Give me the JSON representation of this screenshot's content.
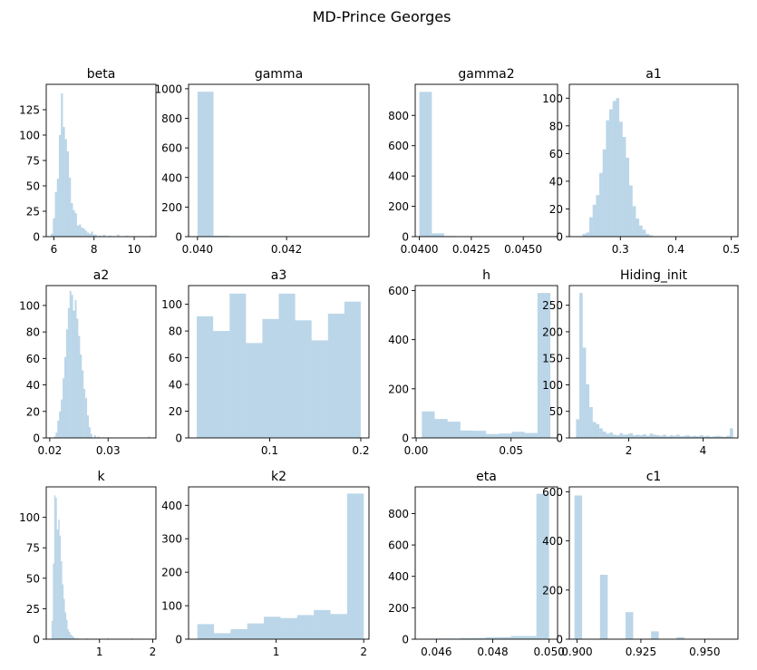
{
  "suptitle": "MD-Prince Georges",
  "bar_color": "#1f77b4",
  "bar_alpha": 0.3,
  "chart_data": [
    {
      "type": "bar",
      "title": "beta",
      "xlim": [
        5.62,
        11.08
      ],
      "ylim": [
        0,
        150
      ],
      "xticks": [
        6,
        8,
        10
      ],
      "xticklabels": [
        "6",
        "8",
        "10"
      ],
      "yticks": [
        0,
        25,
        50,
        75,
        100,
        125
      ],
      "yticklabels": [
        "0",
        "25",
        "50",
        "75",
        "100",
        "125"
      ],
      "bins": [
        [
          5.85,
          5.95,
          3
        ],
        [
          5.95,
          6.05,
          18
        ],
        [
          6.05,
          6.15,
          44
        ],
        [
          6.15,
          6.25,
          57
        ],
        [
          6.25,
          6.35,
          100
        ],
        [
          6.35,
          6.45,
          141
        ],
        [
          6.45,
          6.55,
          108
        ],
        [
          6.55,
          6.65,
          96
        ],
        [
          6.65,
          6.75,
          84
        ],
        [
          6.75,
          6.85,
          58
        ],
        [
          6.85,
          6.95,
          33
        ],
        [
          6.95,
          7.05,
          26
        ],
        [
          7.05,
          7.15,
          23
        ],
        [
          7.15,
          7.25,
          11
        ],
        [
          7.25,
          7.35,
          12
        ],
        [
          7.35,
          7.45,
          9
        ],
        [
          7.45,
          7.55,
          8
        ],
        [
          7.55,
          7.65,
          6
        ],
        [
          7.65,
          7.75,
          4
        ],
        [
          7.75,
          7.85,
          3
        ],
        [
          7.85,
          7.95,
          5
        ],
        [
          7.95,
          8.05,
          2
        ],
        [
          8.05,
          8.15,
          2
        ],
        [
          8.25,
          8.35,
          1
        ],
        [
          8.45,
          8.55,
          2
        ],
        [
          8.75,
          8.85,
          1
        ],
        [
          9.15,
          9.25,
          2
        ],
        [
          9.6,
          9.7,
          1
        ],
        [
          10.8,
          10.9,
          1
        ]
      ]
    },
    {
      "type": "bar",
      "title": "gamma",
      "xlim": [
        0.0398,
        0.04385
      ],
      "ylim": [
        0,
        1030
      ],
      "xticks": [
        0.04,
        0.042
      ],
      "xticklabels": [
        "0.040",
        "0.042"
      ],
      "yticks": [
        0,
        200,
        400,
        600,
        800,
        1000
      ],
      "yticklabels": [
        "0",
        "200",
        "400",
        "600",
        "800",
        "1000"
      ],
      "bins": [
        [
          0.04,
          0.04036,
          980
        ],
        [
          0.04036,
          0.04072,
          6
        ],
        [
          0.04072,
          0.04108,
          2
        ],
        [
          0.04108,
          0.04144,
          1
        ]
      ]
    },
    {
      "type": "bar",
      "title": "gamma2",
      "xlim": [
        0.0398,
        0.04665
      ],
      "ylim": [
        0,
        1005
      ],
      "xticks": [
        0.04,
        0.0425,
        0.045
      ],
      "xticklabels": [
        "0.0400",
        "0.0425",
        "0.0450"
      ],
      "yticks": [
        0,
        200,
        400,
        600,
        800
      ],
      "yticklabels": [
        "0",
        "200",
        "400",
        "600",
        "800"
      ],
      "bins": [
        [
          0.04,
          0.0406,
          955
        ],
        [
          0.0406,
          0.0412,
          22
        ],
        [
          0.0412,
          0.0418,
          4
        ],
        [
          0.0424,
          0.043,
          3
        ],
        [
          0.0436,
          0.0442,
          1
        ],
        [
          0.0442,
          0.0448,
          1
        ]
      ]
    },
    {
      "type": "bar",
      "title": "a1",
      "xlim": [
        0.208,
        0.512
      ],
      "ylim": [
        0,
        110
      ],
      "xticks": [
        0.3,
        0.4,
        0.5
      ],
      "xticklabels": [
        "0.3",
        "0.4",
        "0.5"
      ],
      "yticks": [
        0,
        20,
        40,
        60,
        80,
        100
      ],
      "yticklabels": [
        "0",
        "20",
        "40",
        "60",
        "80",
        "100"
      ],
      "bins": [
        [
          0.232,
          0.238,
          2
        ],
        [
          0.238,
          0.244,
          3
        ],
        [
          0.244,
          0.25,
          14
        ],
        [
          0.25,
          0.256,
          23
        ],
        [
          0.256,
          0.262,
          30
        ],
        [
          0.262,
          0.268,
          46
        ],
        [
          0.268,
          0.274,
          63
        ],
        [
          0.274,
          0.28,
          84
        ],
        [
          0.28,
          0.286,
          92
        ],
        [
          0.286,
          0.292,
          98
        ],
        [
          0.292,
          0.298,
          100
        ],
        [
          0.298,
          0.304,
          83
        ],
        [
          0.304,
          0.31,
          72
        ],
        [
          0.31,
          0.316,
          57
        ],
        [
          0.316,
          0.322,
          37
        ],
        [
          0.322,
          0.328,
          22
        ],
        [
          0.328,
          0.334,
          13
        ],
        [
          0.334,
          0.34,
          8
        ],
        [
          0.34,
          0.346,
          5
        ],
        [
          0.346,
          0.352,
          2
        ],
        [
          0.352,
          0.358,
          1
        ]
      ]
    },
    {
      "type": "bar",
      "title": "a2",
      "xlim": [
        0.0194,
        0.0382
      ],
      "ylim": [
        0,
        115
      ],
      "xticks": [
        0.02,
        0.03
      ],
      "xticklabels": [
        "0.02",
        "0.03"
      ],
      "yticks": [
        0,
        20,
        40,
        60,
        80,
        100
      ],
      "yticklabels": [
        "0",
        "20",
        "40",
        "60",
        "80",
        "100"
      ],
      "bins": [
        [
          0.0207,
          0.021,
          1
        ],
        [
          0.021,
          0.0213,
          4
        ],
        [
          0.0213,
          0.0216,
          13
        ],
        [
          0.0216,
          0.0219,
          20
        ],
        [
          0.0219,
          0.0222,
          29
        ],
        [
          0.0222,
          0.0225,
          45
        ],
        [
          0.0225,
          0.0228,
          61
        ],
        [
          0.0228,
          0.0231,
          82
        ],
        [
          0.0231,
          0.0234,
          98
        ],
        [
          0.0234,
          0.0237,
          111
        ],
        [
          0.0237,
          0.024,
          108
        ],
        [
          0.024,
          0.0243,
          96
        ],
        [
          0.0243,
          0.0246,
          104
        ],
        [
          0.0246,
          0.0249,
          90
        ],
        [
          0.0249,
          0.0252,
          77
        ],
        [
          0.0252,
          0.0255,
          63
        ],
        [
          0.0255,
          0.0258,
          51
        ],
        [
          0.0258,
          0.0261,
          37
        ],
        [
          0.0261,
          0.0264,
          30
        ],
        [
          0.0264,
          0.0267,
          17
        ],
        [
          0.0267,
          0.027,
          8
        ],
        [
          0.027,
          0.0273,
          3
        ],
        [
          0.0276,
          0.0279,
          2
        ],
        [
          0.0282,
          0.0285,
          1
        ],
        [
          0.0369,
          0.0372,
          1
        ]
      ]
    },
    {
      "type": "bar",
      "title": "a3",
      "xlim": [
        0.011,
        0.209
      ],
      "ylim": [
        0,
        114
      ],
      "xticks": [
        0.1,
        0.2
      ],
      "xticklabels": [
        "0.1",
        "0.2"
      ],
      "yticks": [
        0,
        20,
        40,
        60,
        80,
        100
      ],
      "yticklabels": [
        "0",
        "20",
        "40",
        "60",
        "80",
        "100"
      ],
      "bins": [
        [
          0.02,
          0.038,
          91
        ],
        [
          0.038,
          0.056,
          80
        ],
        [
          0.056,
          0.074,
          108
        ],
        [
          0.074,
          0.092,
          71
        ],
        [
          0.092,
          0.11,
          89
        ],
        [
          0.11,
          0.128,
          108
        ],
        [
          0.128,
          0.146,
          88
        ],
        [
          0.146,
          0.164,
          73
        ],
        [
          0.164,
          0.182,
          93
        ],
        [
          0.182,
          0.2,
          102
        ]
      ]
    },
    {
      "type": "bar",
      "title": "h",
      "xlim": [
        -0.0005,
        0.0745
      ],
      "ylim": [
        0,
        620
      ],
      "xticks": [
        0,
        0.05
      ],
      "xticklabels": [
        "0.00",
        "0.05"
      ],
      "yticks": [
        0,
        200,
        400,
        600
      ],
      "yticklabels": [
        "0",
        "200",
        "400",
        "600"
      ],
      "bins": [
        [
          0.003,
          0.00977,
          108
        ],
        [
          0.00977,
          0.01654,
          77
        ],
        [
          0.01654,
          0.02331,
          66
        ],
        [
          0.02331,
          0.03008,
          30
        ],
        [
          0.03008,
          0.03685,
          29
        ],
        [
          0.03685,
          0.04362,
          16
        ],
        [
          0.04362,
          0.05039,
          18
        ],
        [
          0.05039,
          0.05716,
          25
        ],
        [
          0.05716,
          0.06393,
          20
        ],
        [
          0.06393,
          0.0707,
          590
        ]
      ]
    },
    {
      "type": "bar",
      "title": "Hiding_init",
      "xlim": [
        0.4,
        4.94
      ],
      "ylim": [
        0,
        287
      ],
      "xticks": [
        2,
        4
      ],
      "xticklabels": [
        "2",
        "4"
      ],
      "yticks": [
        0,
        50,
        100,
        150,
        200,
        250
      ],
      "yticklabels": [
        "0",
        "50",
        "100",
        "150",
        "200",
        "250"
      ],
      "bins": [
        [
          0.58,
          0.67,
          35
        ],
        [
          0.67,
          0.76,
          273
        ],
        [
          0.76,
          0.85,
          170
        ],
        [
          0.85,
          0.94,
          101
        ],
        [
          0.94,
          1.03,
          58
        ],
        [
          1.03,
          1.12,
          30
        ],
        [
          1.12,
          1.21,
          26
        ],
        [
          1.21,
          1.3,
          18
        ],
        [
          1.3,
          1.39,
          12
        ],
        [
          1.39,
          1.48,
          8
        ],
        [
          1.48,
          1.57,
          10
        ],
        [
          1.57,
          1.66,
          6
        ],
        [
          1.66,
          1.75,
          5
        ],
        [
          1.75,
          1.84,
          9
        ],
        [
          1.84,
          1.93,
          6
        ],
        [
          1.93,
          2.02,
          7
        ],
        [
          2.02,
          2.11,
          9
        ],
        [
          2.11,
          2.2,
          5
        ],
        [
          2.2,
          2.29,
          6
        ],
        [
          2.29,
          2.38,
          5
        ],
        [
          2.38,
          2.47,
          7
        ],
        [
          2.47,
          2.56,
          4
        ],
        [
          2.56,
          2.65,
          8
        ],
        [
          2.65,
          2.74,
          6
        ],
        [
          2.74,
          2.83,
          5
        ],
        [
          2.83,
          2.92,
          4
        ],
        [
          2.92,
          3.01,
          6
        ],
        [
          3.01,
          3.1,
          3
        ],
        [
          3.1,
          3.19,
          5
        ],
        [
          3.19,
          3.28,
          4
        ],
        [
          3.28,
          3.37,
          6
        ],
        [
          3.37,
          3.46,
          3
        ],
        [
          3.46,
          3.55,
          4
        ],
        [
          3.55,
          3.64,
          5
        ],
        [
          3.64,
          3.73,
          3
        ],
        [
          3.73,
          3.82,
          4
        ],
        [
          3.82,
          3.91,
          3
        ],
        [
          3.91,
          4.0,
          5
        ],
        [
          4.0,
          4.09,
          3
        ],
        [
          4.09,
          4.18,
          4
        ],
        [
          4.18,
          4.27,
          2
        ],
        [
          4.27,
          4.36,
          3
        ],
        [
          4.36,
          4.45,
          4
        ],
        [
          4.45,
          4.54,
          3
        ],
        [
          4.54,
          4.63,
          2
        ],
        [
          4.63,
          4.72,
          4
        ],
        [
          4.72,
          4.81,
          18
        ]
      ]
    },
    {
      "type": "bar",
      "title": "k",
      "xlim": [
        0.0,
        2.06
      ],
      "ylim": [
        0,
        125
      ],
      "xticks": [
        1,
        2
      ],
      "xticklabels": [
        "1",
        "2"
      ],
      "yticks": [
        0,
        25,
        50,
        75,
        100
      ],
      "yticklabels": [
        "0",
        "25",
        "50",
        "75",
        "100"
      ],
      "bins": [
        [
          0.1,
          0.125,
          15
        ],
        [
          0.125,
          0.15,
          62
        ],
        [
          0.15,
          0.175,
          118
        ],
        [
          0.175,
          0.2,
          116
        ],
        [
          0.2,
          0.225,
          90
        ],
        [
          0.225,
          0.25,
          98
        ],
        [
          0.25,
          0.275,
          85
        ],
        [
          0.275,
          0.3,
          64
        ],
        [
          0.3,
          0.325,
          45
        ],
        [
          0.325,
          0.35,
          33
        ],
        [
          0.35,
          0.375,
          22
        ],
        [
          0.375,
          0.4,
          16
        ],
        [
          0.4,
          0.425,
          8
        ],
        [
          0.425,
          0.45,
          6
        ],
        [
          0.45,
          0.475,
          4
        ],
        [
          0.475,
          0.5,
          3
        ],
        [
          0.5,
          0.525,
          2
        ],
        [
          0.525,
          0.55,
          1
        ],
        [
          0.575,
          0.6,
          1
        ],
        [
          0.75,
          0.775,
          1
        ],
        [
          1.15,
          1.175,
          1
        ],
        [
          1.6,
          1.625,
          1
        ]
      ]
    },
    {
      "type": "bar",
      "title": "k2",
      "xlim": [
        0.0,
        2.06
      ],
      "ylim": [
        0,
        455
      ],
      "xticks": [
        1,
        2
      ],
      "xticklabels": [
        "1",
        "2"
      ],
      "yticks": [
        0,
        100,
        200,
        300,
        400
      ],
      "yticklabels": [
        "0",
        "100",
        "200",
        "300",
        "400"
      ],
      "bins": [
        [
          0.1,
          0.29,
          45
        ],
        [
          0.29,
          0.48,
          18
        ],
        [
          0.48,
          0.67,
          30
        ],
        [
          0.67,
          0.86,
          47
        ],
        [
          0.86,
          1.05,
          67
        ],
        [
          1.05,
          1.24,
          63
        ],
        [
          1.24,
          1.43,
          72
        ],
        [
          1.43,
          1.62,
          87
        ],
        [
          1.62,
          1.81,
          75
        ],
        [
          1.81,
          2.0,
          435
        ]
      ]
    },
    {
      "type": "bar",
      "title": "eta",
      "xlim": [
        0.04525,
        0.0503
      ],
      "ylim": [
        0,
        970
      ],
      "xticks": [
        0.046,
        0.048,
        0.05
      ],
      "xticklabels": [
        "0.046",
        "0.048",
        "0.050"
      ],
      "yticks": [
        0,
        200,
        400,
        600,
        800
      ],
      "yticklabels": [
        "0",
        "200",
        "400",
        "600",
        "800"
      ],
      "bins": [
        [
          0.0455,
          0.04595,
          2
        ],
        [
          0.04595,
          0.0464,
          4
        ],
        [
          0.0464,
          0.04685,
          4
        ],
        [
          0.04685,
          0.0473,
          7
        ],
        [
          0.0473,
          0.04775,
          8
        ],
        [
          0.04775,
          0.0482,
          12
        ],
        [
          0.0482,
          0.04865,
          13
        ],
        [
          0.04865,
          0.0491,
          20
        ],
        [
          0.0491,
          0.04955,
          20
        ],
        [
          0.04955,
          0.05,
          926
        ]
      ]
    },
    {
      "type": "bar",
      "title": "c1",
      "xlim": [
        0.897,
        0.963
      ],
      "ylim": [
        0,
        620
      ],
      "xticks": [
        0.9,
        0.925,
        0.95
      ],
      "xticklabels": [
        "0.900",
        "0.925",
        "0.950"
      ],
      "yticks": [
        0,
        200,
        400,
        600
      ],
      "yticklabels": [
        "0",
        "200",
        "400",
        "600"
      ],
      "bins": [
        [
          0.899,
          0.902,
          585
        ],
        [
          0.909,
          0.912,
          262
        ],
        [
          0.919,
          0.922,
          110
        ],
        [
          0.929,
          0.932,
          32
        ],
        [
          0.939,
          0.942,
          8
        ],
        [
          0.949,
          0.952,
          2
        ]
      ]
    }
  ]
}
